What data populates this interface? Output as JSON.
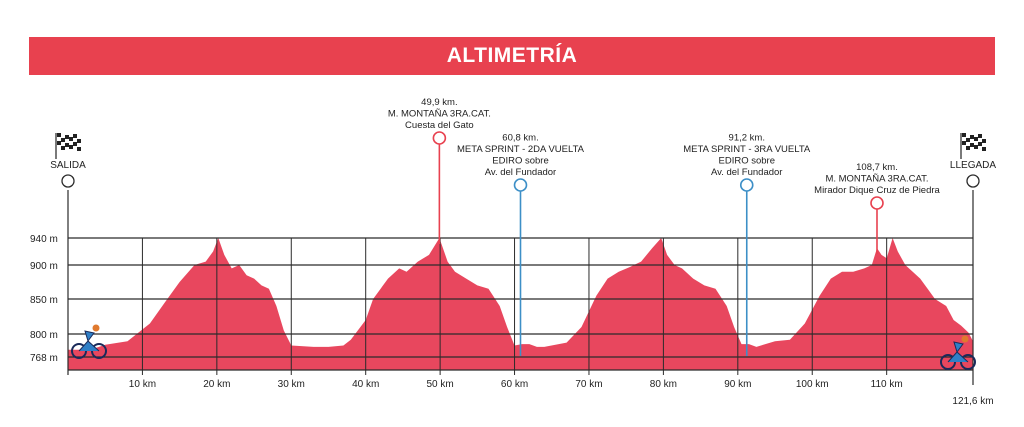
{
  "banner": {
    "title": "ALTIMETRÍA"
  },
  "colors": {
    "banner": "#e8414f",
    "profile_fill": "#e8475e",
    "climb_marker": "#e8414f",
    "sprint_marker": "#3d8fc7",
    "grid": "#2b2b2b"
  },
  "chart_data": {
    "type": "area",
    "title": "ALTIMETRÍA",
    "xlabel": "",
    "ylabel": "",
    "xlim": [
      0,
      121.6
    ],
    "ylim": [
      768,
      940
    ],
    "grid": true,
    "x_unit": "km",
    "y_unit": "m",
    "x_tick_labels": [
      {
        "x": 10,
        "label": "10 km"
      },
      {
        "x": 20,
        "label": "20 km"
      },
      {
        "x": 30,
        "label": "30 km"
      },
      {
        "x": 40,
        "label": "40 km"
      },
      {
        "x": 50,
        "label": "50 km"
      },
      {
        "x": 60,
        "label": "60 km"
      },
      {
        "x": 70,
        "label": "70 km"
      },
      {
        "x": 80,
        "label": "80 km"
      },
      {
        "x": 90,
        "label": "90 km"
      },
      {
        "x": 100,
        "label": "100 km"
      },
      {
        "x": 110,
        "label": "110 km"
      }
    ],
    "end_label": "121,6 km",
    "y_tick_labels": [
      {
        "y": 940,
        "label": "940 m"
      },
      {
        "y": 900,
        "label": "900 m"
      },
      {
        "y": 850,
        "label": "850 m"
      },
      {
        "y": 800,
        "label": "800 m"
      },
      {
        "y": 768,
        "label": "768 m"
      }
    ],
    "series": [
      {
        "x": [
          0,
          3,
          5,
          8,
          11,
          13,
          15,
          17,
          18.5,
          19.5,
          20.2,
          21,
          22,
          23,
          24,
          25,
          26,
          27,
          28,
          29,
          30,
          33,
          35,
          37,
          38,
          40,
          41,
          43,
          44.5,
          45.5,
          47,
          48.5,
          49.9,
          51,
          52,
          53.5,
          55,
          56.5,
          58,
          59,
          60,
          61,
          62,
          63,
          64,
          67,
          69,
          71,
          72.5,
          74,
          75.5,
          77,
          78.5,
          79.7,
          80.5,
          81.5,
          82.5,
          84,
          85.5,
          87,
          88.5,
          89.5,
          90.5,
          91.5,
          92.5,
          95,
          97,
          99,
          101,
          102.5,
          104,
          105.5,
          107,
          108,
          108.7,
          109.3,
          110,
          110.8,
          111.5,
          112.5,
          113.5,
          114.5,
          115.5,
          116.5,
          118,
          119,
          120,
          121,
          121.6
        ],
        "y": [
          778,
          778,
          785,
          790,
          815,
          845,
          875,
          900,
          905,
          920,
          940,
          915,
          895,
          900,
          885,
          880,
          870,
          865,
          840,
          805,
          784,
          782,
          782,
          784,
          792,
          820,
          850,
          880,
          895,
          890,
          905,
          915,
          940,
          905,
          890,
          880,
          870,
          865,
          840,
          810,
          784,
          786,
          786,
          782,
          782,
          788,
          810,
          855,
          880,
          890,
          897,
          905,
          925,
          940,
          915,
          900,
          895,
          880,
          870,
          865,
          840,
          810,
          786,
          786,
          782,
          790,
          792,
          815,
          855,
          880,
          890,
          890,
          895,
          900,
          925,
          915,
          910,
          940,
          920,
          900,
          890,
          880,
          865,
          850,
          840,
          820,
          812,
          802,
          790
        ]
      }
    ],
    "markers": [
      {
        "x": 0,
        "type": "start",
        "label": "SALIDA"
      },
      {
        "x": 49.9,
        "type": "climb",
        "lines": [
          "49,9 km.",
          "M. MONTAÑA 3RA.CAT.",
          "Cuesta del Gato"
        ]
      },
      {
        "x": 60.8,
        "type": "sprint",
        "lines": [
          "60,8 km.",
          "META SPRINT - 2DA VUELTA",
          "EDIRO sobre",
          "Av. del Fundador"
        ]
      },
      {
        "x": 91.2,
        "type": "sprint",
        "lines": [
          "91,2 km.",
          "META SPRINT - 3RA VUELTA",
          "EDIRO sobre",
          "Av. del Fundador"
        ]
      },
      {
        "x": 108.7,
        "type": "climb",
        "lines": [
          "108,7 km.",
          "M. MONTAÑA 3RA.CAT.",
          "Mirador Dique Cruz de Piedra"
        ]
      },
      {
        "x": 121.6,
        "type": "finish",
        "label": "LLEGADA"
      }
    ]
  }
}
